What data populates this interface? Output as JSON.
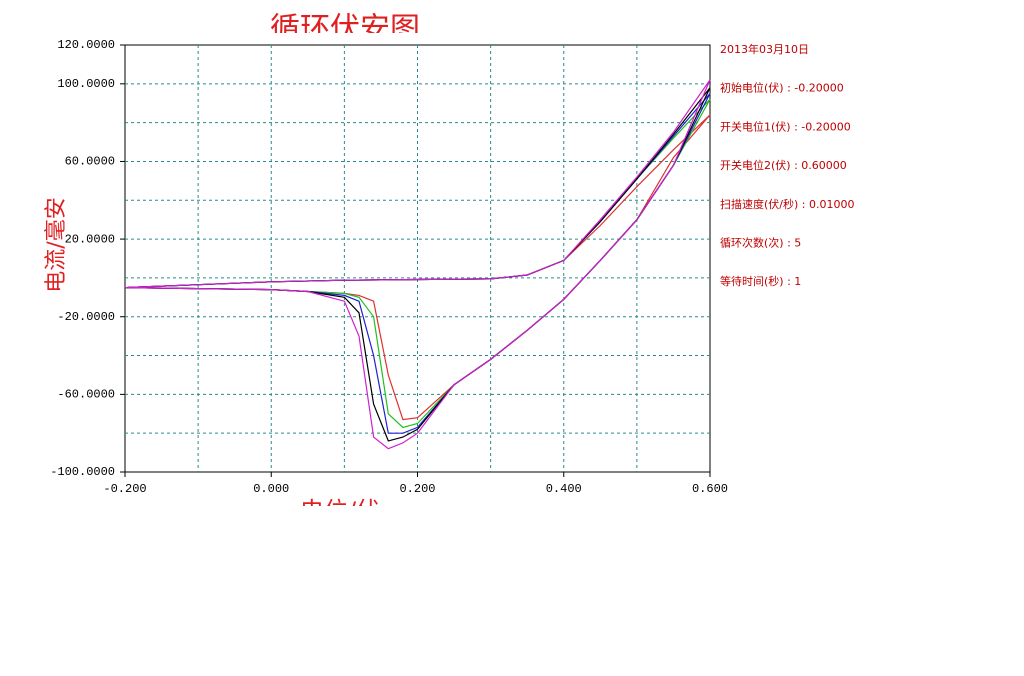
{
  "chart_data": {
    "type": "line",
    "title": "循环伏安图",
    "x_label": "电位/伏",
    "y_label": "电流/毫安",
    "annotations": [
      "2013年03月10日",
      "初始电位(伏) : -0.20000",
      "开关电位1(伏) : -0.20000",
      "开关电位2(伏) : 0.60000",
      "扫描速度(伏/秒) : 0.01000",
      "循环次数(次) : 5",
      "等待时间(秒) : 1"
    ],
    "xlim": [
      -0.2,
      0.6
    ],
    "ylim": [
      -100,
      120
    ],
    "xticks": [
      {
        "value": -0.2,
        "label": "-0.200"
      },
      {
        "value": 0,
        "label": "0.000"
      },
      {
        "value": 0.2,
        "label": "0.200"
      },
      {
        "value": 0.4,
        "label": "0.400"
      },
      {
        "value": 0.6,
        "label": "0.600"
      }
    ],
    "yticks": [
      {
        "value": 120,
        "label": "120.0000"
      },
      {
        "value": 100,
        "label": "100.0000"
      },
      {
        "value": 60,
        "label": "60.0000"
      },
      {
        "value": 20,
        "label": "20.0000"
      },
      {
        "value": -20,
        "label": "-20.0000"
      },
      {
        "value": -60,
        "label": "-60.0000"
      },
      {
        "value": -100,
        "label": "-100.0000"
      }
    ],
    "xgrid": [
      -0.1,
      0,
      0.1,
      0.2,
      0.3,
      0.4,
      0.5
    ],
    "ygrid": [
      100,
      80,
      60,
      40,
      20,
      0,
      -20,
      -40,
      -60,
      -80
    ],
    "grid": true,
    "x": [
      -0.2,
      -0.1,
      0,
      0.1,
      0.2,
      0.3,
      0.35,
      0.4,
      0.45,
      0.5,
      0.55,
      0.6,
      0.55,
      0.5,
      0.45,
      0.4,
      0.35,
      0.3,
      0.25,
      0.2,
      0.18,
      0.16,
      0.14,
      0.12,
      0.1,
      0.05,
      0,
      -0.1,
      -0.2
    ],
    "series": [
      {
        "color": "#e03030",
        "values": [
          -5,
          -3.5,
          -2,
          -1.2,
          -0.8,
          -0.5,
          1.5,
          9,
          27,
          47,
          66,
          84,
          62,
          30,
          9,
          -11,
          -27,
          -42,
          -55,
          -72,
          -73,
          -50,
          -12,
          -9,
          -8,
          -7,
          -6,
          -5.5,
          -5
        ]
      },
      {
        "color": "#20c020",
        "values": [
          -5,
          -3.5,
          -2,
          -1.2,
          -0.8,
          -0.5,
          1.5,
          9,
          29,
          51,
          72,
          92,
          58,
          30,
          9,
          -11,
          -27,
          -42,
          -55,
          -75,
          -77,
          -70,
          -20,
          -10,
          -8,
          -7,
          -6,
          -5.5,
          -5
        ]
      },
      {
        "color": "#2020d0",
        "values": [
          -5,
          -3.5,
          -2,
          -1.2,
          -0.8,
          -0.5,
          1.5,
          9,
          29,
          51,
          73,
          95,
          58,
          30,
          9,
          -11,
          -27,
          -42,
          -55,
          -77,
          -80,
          -80,
          -40,
          -12,
          -9,
          -7,
          -6,
          -5.5,
          -5
        ]
      },
      {
        "color": "#000000",
        "values": [
          -5,
          -3.5,
          -2,
          -1.2,
          -0.8,
          -0.5,
          1.5,
          9,
          29,
          51,
          74,
          98,
          58,
          30,
          9,
          -11,
          -27,
          -42,
          -55,
          -78,
          -82,
          -84,
          -65,
          -18,
          -10,
          -7,
          -6,
          -5.5,
          -5
        ]
      },
      {
        "color": "#d020d0",
        "values": [
          -5,
          -3.5,
          -2,
          -1.2,
          -0.8,
          -0.5,
          1.5,
          9,
          30,
          52,
          75,
          102,
          58,
          30,
          9,
          -11,
          -27,
          -42,
          -55,
          -80,
          -85,
          -88,
          -82,
          -30,
          -12,
          -7,
          -6,
          -5.5,
          -5
        ]
      }
    ]
  }
}
